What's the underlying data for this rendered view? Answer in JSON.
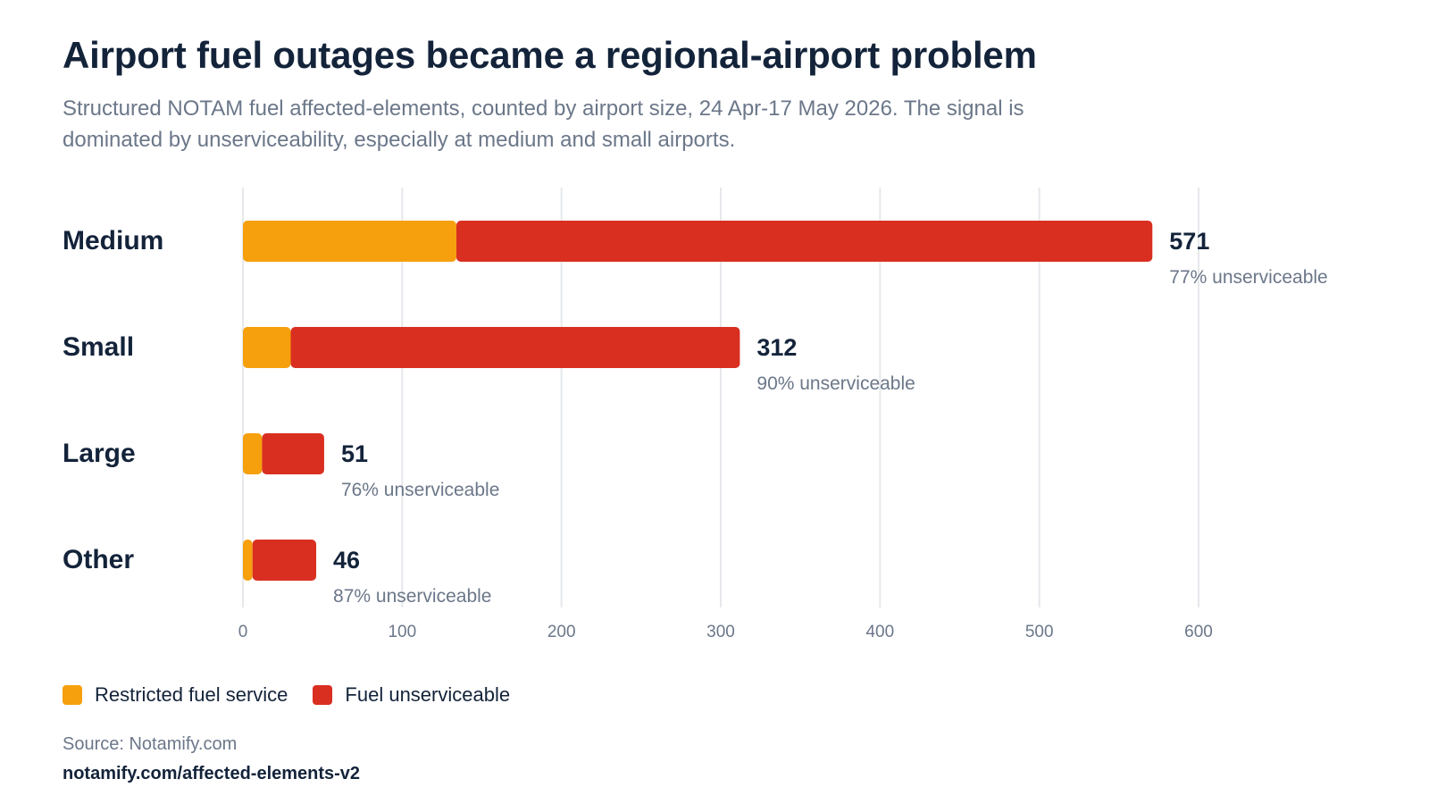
{
  "header": {
    "title": "Airport fuel outages became a regional-airport problem",
    "subtitle": "Structured NOTAM fuel affected-elements, counted by airport size, 24 Apr-17 May 2026. The signal is dominated by unserviceability, especially at medium and small airports."
  },
  "chart_data": {
    "type": "bar",
    "orientation": "horizontal",
    "stacked": true,
    "categories": [
      "Medium",
      "Small",
      "Large",
      "Other"
    ],
    "series": [
      {
        "name": "Restricted fuel service",
        "color": "#f5a00c",
        "values": [
          134,
          30,
          12,
          6
        ]
      },
      {
        "name": "Fuel unserviceable",
        "color": "#d92f21",
        "values": [
          437,
          282,
          39,
          40
        ]
      }
    ],
    "totals": [
      "571",
      "312",
      "51",
      "46"
    ],
    "notes": [
      "77% unserviceable",
      "90% unserviceable",
      "76% unserviceable",
      "87% unserviceable"
    ],
    "xlim": [
      0,
      600
    ],
    "xticks": [
      0,
      100,
      200,
      300,
      400,
      500,
      600
    ],
    "grid": true,
    "legend": "bottom-left"
  },
  "legend": {
    "items": [
      {
        "label": "Restricted fuel service",
        "color": "#f5a00c"
      },
      {
        "label": "Fuel unserviceable",
        "color": "#d92f21"
      }
    ]
  },
  "footer": {
    "source": "Source: Notamify.com",
    "url": "notamify.com/affected-elements-v2"
  }
}
